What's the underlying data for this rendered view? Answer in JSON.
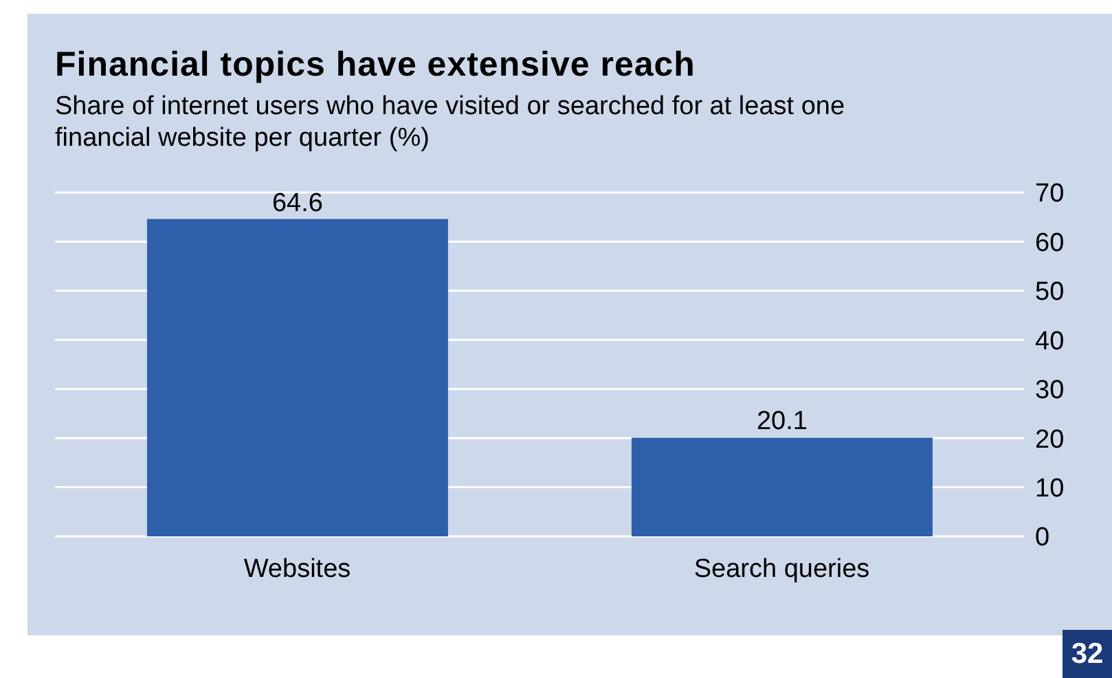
{
  "chart_data": {
    "type": "bar",
    "title": "Financial topics have extensive reach",
    "subtitle": "Share of internet users who have visited or searched for at least one financial website per quarter (%)",
    "categories": [
      "Websites",
      "Search queries"
    ],
    "values": [
      64.6,
      20.1
    ],
    "color": "#2e5fab",
    "ylim": [
      0,
      70
    ],
    "yticks": [
      0,
      10,
      20,
      30,
      40,
      50,
      60,
      70
    ],
    "grid": "y",
    "data_labels": true,
    "annotations": [
      "32"
    ]
  }
}
